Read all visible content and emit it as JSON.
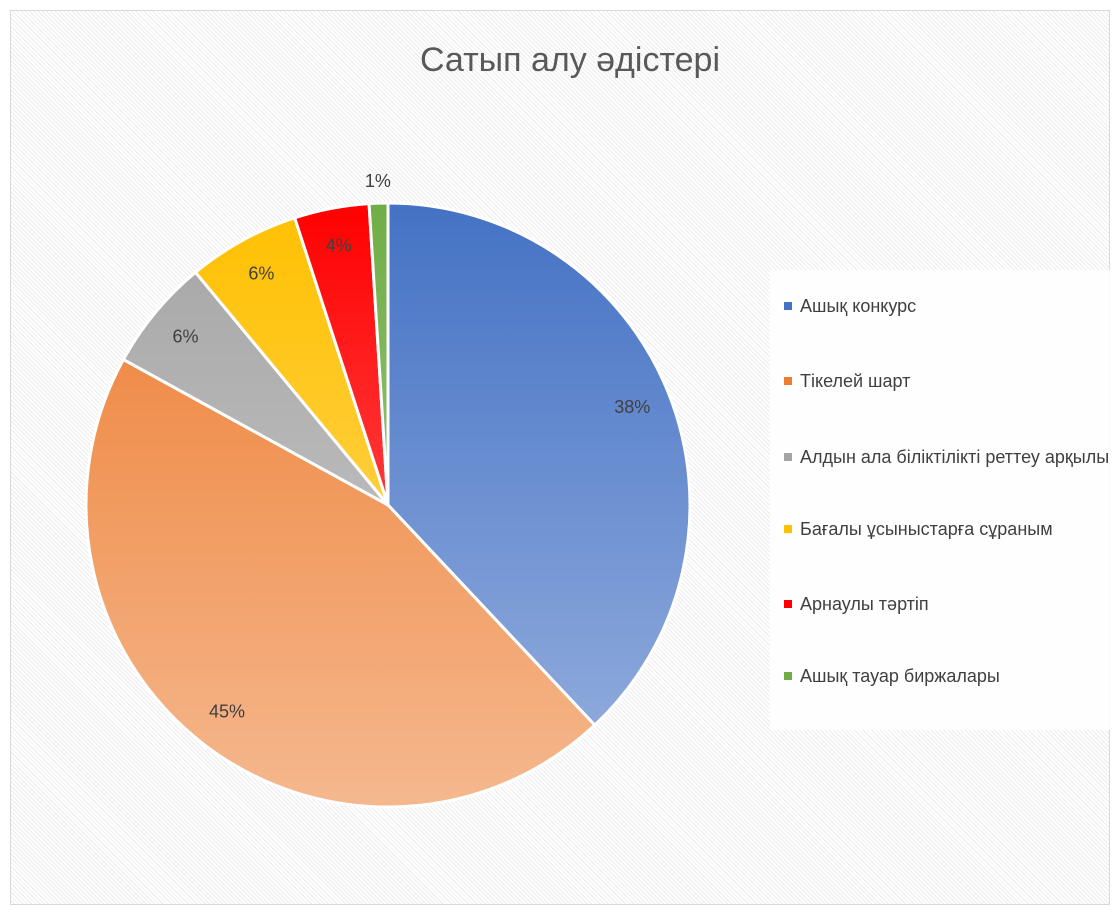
{
  "chart_data": {
    "type": "pie",
    "title": "Сатып алу әдістері",
    "categories": [
      "Ашық конкурс",
      "Тікелей шарт",
      "Алдын ала біліктілікті реттеу арқылы",
      "Бағалы ұсыныстарға сұраным",
      "Арнаулы тәртіп",
      "Ашық тауар биржалары"
    ],
    "values": [
      38,
      45,
      6,
      6,
      4,
      1
    ],
    "value_labels": [
      "38%",
      "45%",
      "6%",
      "6%",
      "4%",
      "1%"
    ],
    "colors": [
      "#4472c4",
      "#ed7d31",
      "#a5a5a5",
      "#ffc000",
      "#ff0000",
      "#70ad47"
    ],
    "legend": "right"
  }
}
